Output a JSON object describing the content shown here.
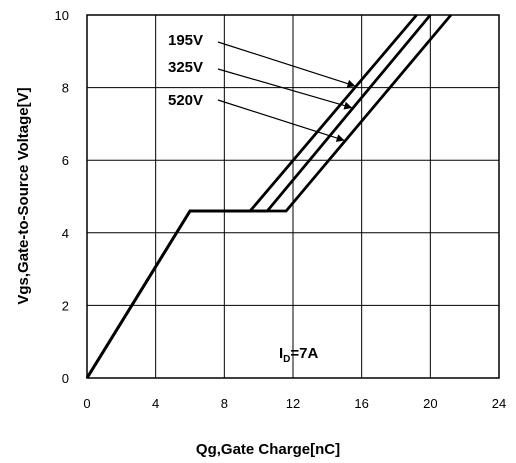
{
  "chart_data": {
    "type": "line",
    "xlabel": "Qg,Gate Charge[nC]",
    "ylabel": "Vgs,Gate-to-Source Voltage[V]",
    "xlim": [
      0,
      24
    ],
    "ylim": [
      0,
      10
    ],
    "xticks": [
      "0",
      "4",
      "8",
      "12",
      "16",
      "20",
      "24"
    ],
    "yticks": [
      "0",
      "2",
      "4",
      "6",
      "8",
      "10"
    ],
    "grid": true,
    "series": [
      {
        "name": "195V",
        "points": [
          [
            0,
            0
          ],
          [
            6,
            4.6
          ],
          [
            9.5,
            4.6
          ],
          [
            19.2,
            10
          ]
        ]
      },
      {
        "name": "325V",
        "points": [
          [
            0,
            0
          ],
          [
            6,
            4.6
          ],
          [
            10.5,
            4.6
          ],
          [
            20,
            10
          ]
        ]
      },
      {
        "name": "520V",
        "points": [
          [
            0,
            0
          ],
          [
            6,
            4.6
          ],
          [
            11.6,
            4.6
          ],
          [
            21.2,
            10
          ]
        ]
      }
    ],
    "annotations": {
      "condition": {
        "prefix": "I",
        "subscript": "D",
        "suffix": "=7A"
      }
    }
  }
}
